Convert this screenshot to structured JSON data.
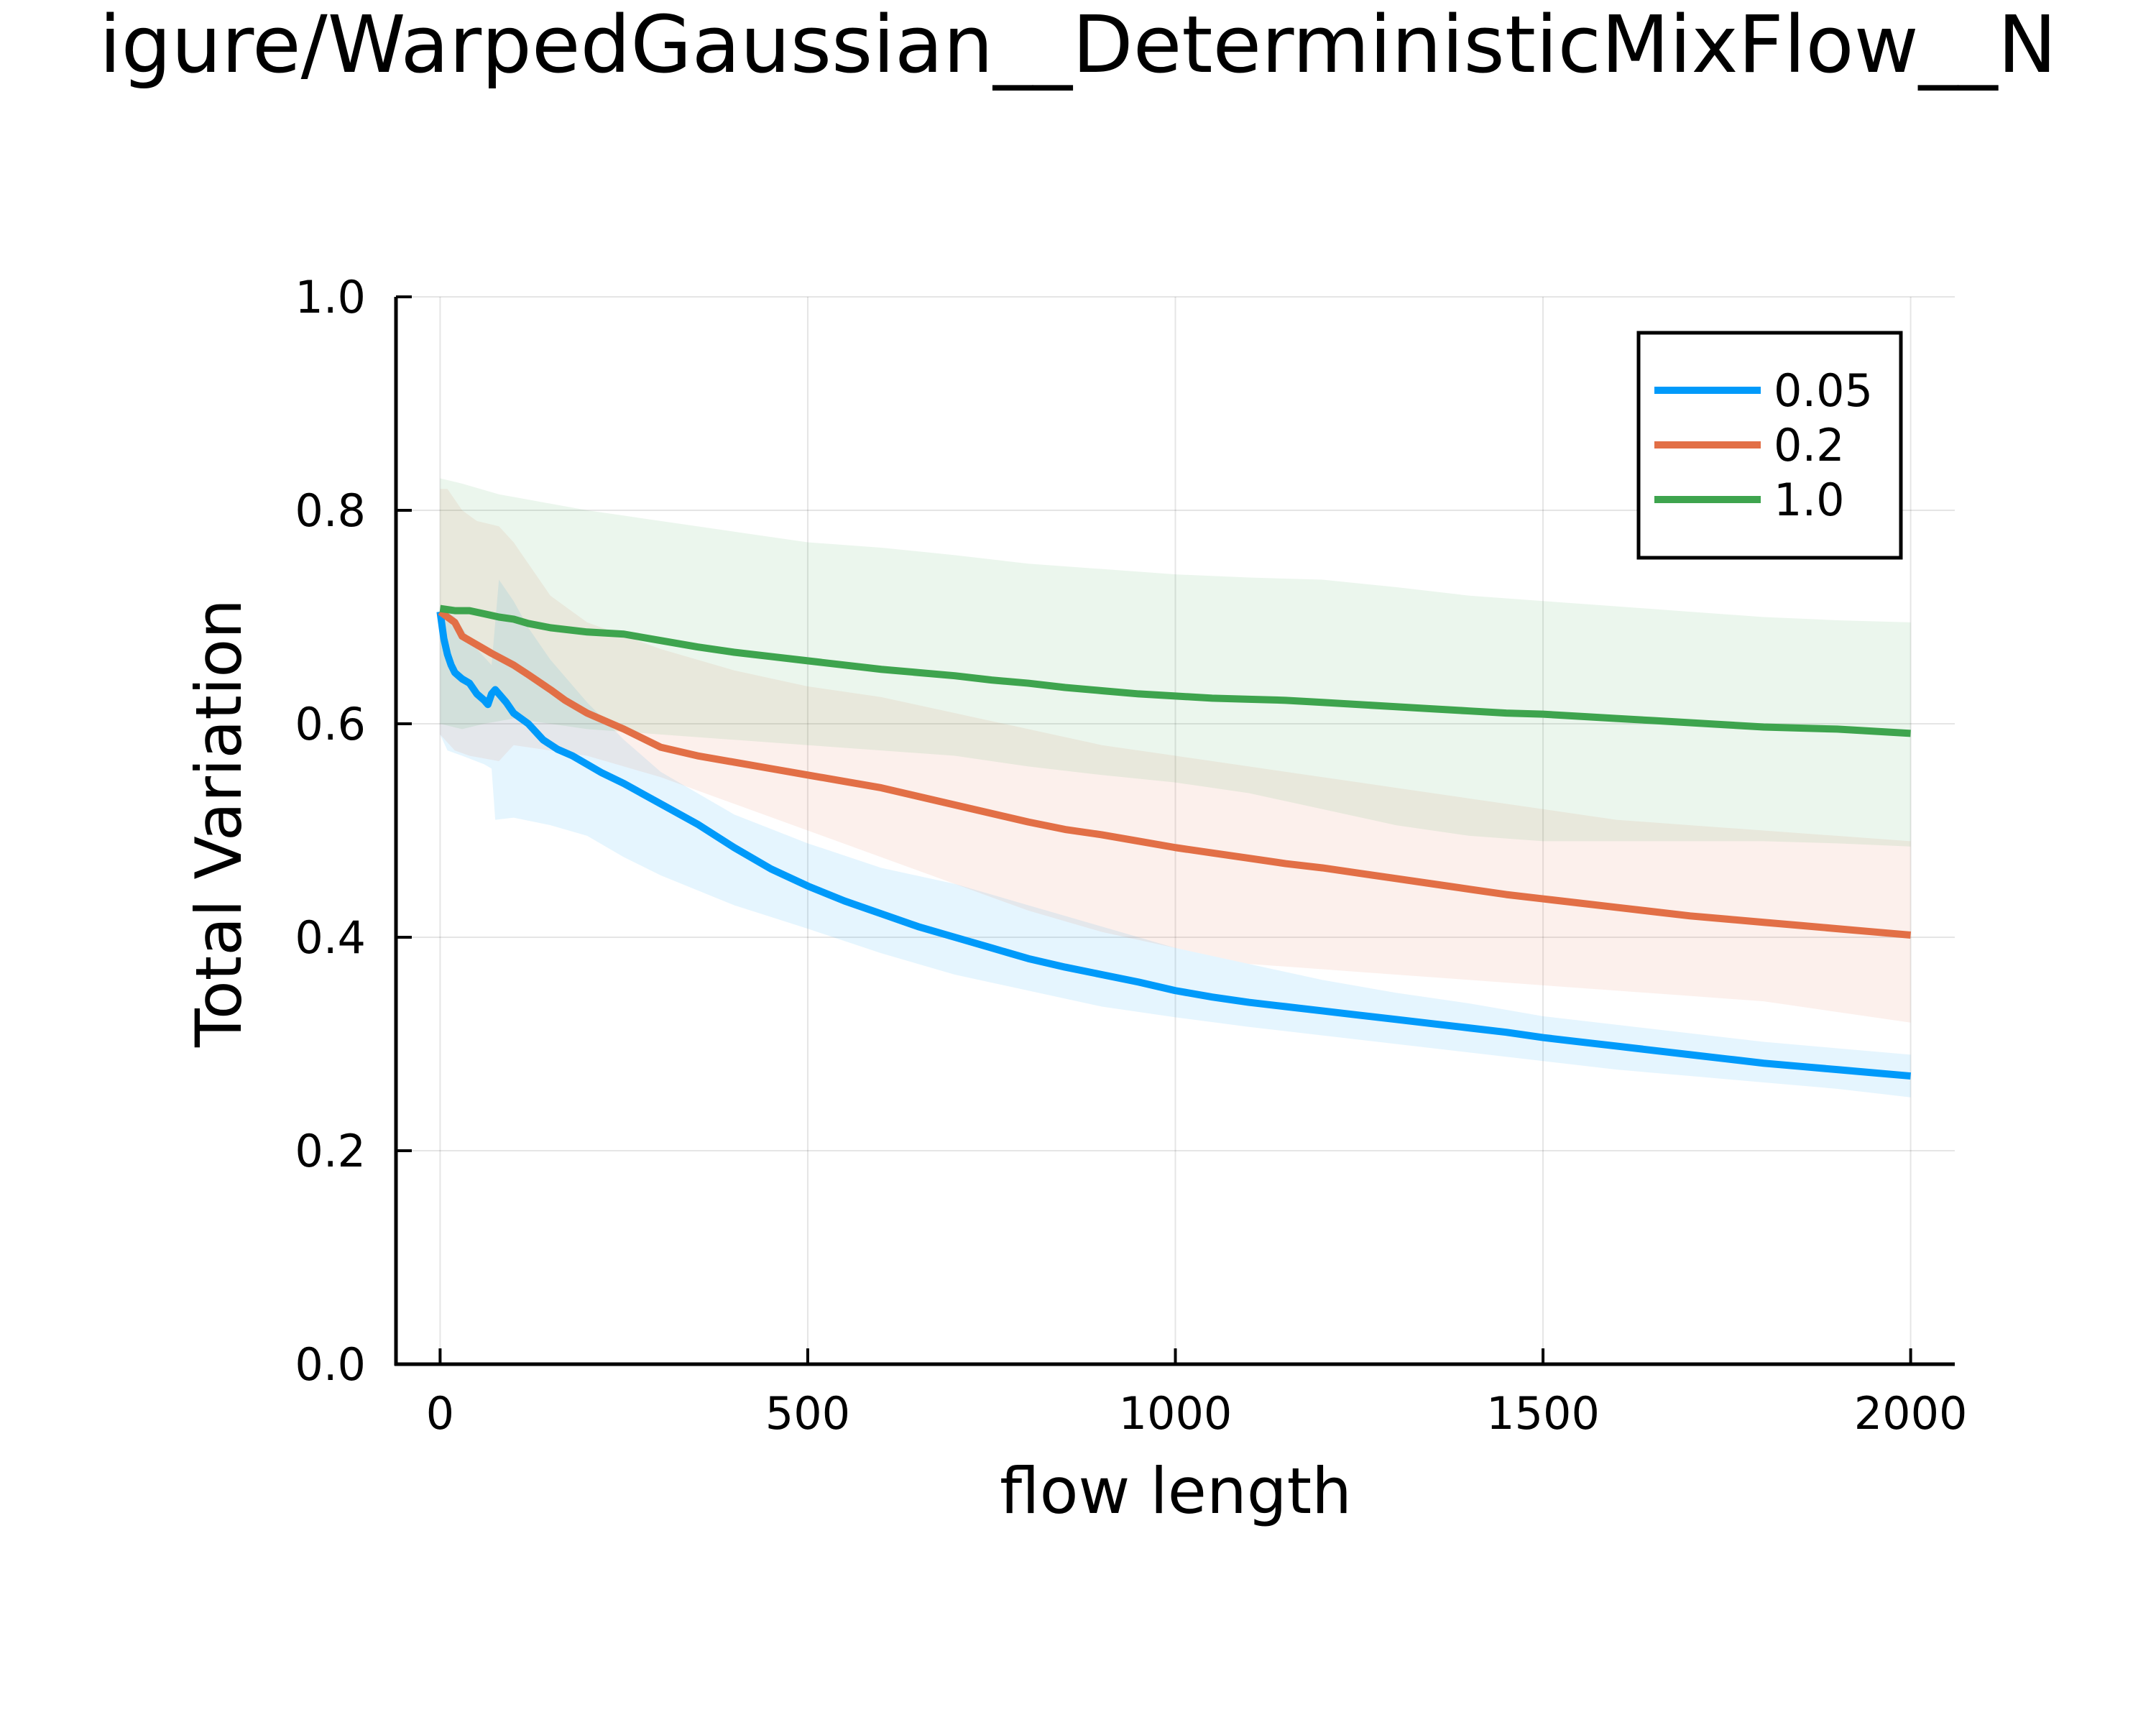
{
  "chart_data": {
    "type": "line",
    "title": "igure/WarpedGaussian__DeterministicMixFlow__N",
    "xlabel": "flow length",
    "ylabel": "Total Variation",
    "xlim": [
      -60,
      2060
    ],
    "ylim": [
      0,
      1.0
    ],
    "xticks": [
      0,
      500,
      1000,
      1500,
      2000
    ],
    "xtick_labels": [
      "0",
      "500",
      "1000",
      "1500",
      "2000"
    ],
    "yticks": [
      0,
      0.2,
      0.4,
      0.6,
      0.8,
      1.0
    ],
    "ytick_labels": [
      "0.0",
      "0.2",
      "0.4",
      "0.6",
      "0.8",
      "1.0"
    ],
    "grid": true,
    "legend_position": "top-right",
    "series": [
      {
        "name": "0.05",
        "color": "#009AFA",
        "points": [
          [
            0,
            0.705
          ],
          [
            5,
            0.68
          ],
          [
            10,
            0.665
          ],
          [
            15,
            0.655
          ],
          [
            20,
            0.648
          ],
          [
            30,
            0.642
          ],
          [
            40,
            0.638
          ],
          [
            50,
            0.628
          ],
          [
            60,
            0.622
          ],
          [
            65,
            0.618
          ],
          [
            70,
            0.628
          ],
          [
            75,
            0.632
          ],
          [
            80,
            0.628
          ],
          [
            90,
            0.62
          ],
          [
            100,
            0.61
          ],
          [
            120,
            0.6
          ],
          [
            140,
            0.585
          ],
          [
            160,
            0.576
          ],
          [
            180,
            0.57
          ],
          [
            200,
            0.562
          ],
          [
            220,
            0.554
          ],
          [
            250,
            0.544
          ],
          [
            300,
            0.525
          ],
          [
            350,
            0.506
          ],
          [
            400,
            0.484
          ],
          [
            450,
            0.464
          ],
          [
            500,
            0.448
          ],
          [
            550,
            0.434
          ],
          [
            600,
            0.422
          ],
          [
            650,
            0.41
          ],
          [
            700,
            0.4
          ],
          [
            750,
            0.39
          ],
          [
            800,
            0.38
          ],
          [
            850,
            0.372
          ],
          [
            900,
            0.365
          ],
          [
            950,
            0.358
          ],
          [
            1000,
            0.35
          ],
          [
            1050,
            0.344
          ],
          [
            1100,
            0.339
          ],
          [
            1150,
            0.335
          ],
          [
            1200,
            0.331
          ],
          [
            1250,
            0.327
          ],
          [
            1300,
            0.323
          ],
          [
            1350,
            0.319
          ],
          [
            1400,
            0.315
          ],
          [
            1450,
            0.311
          ],
          [
            1500,
            0.306
          ],
          [
            1550,
            0.302
          ],
          [
            1600,
            0.298
          ],
          [
            1650,
            0.294
          ],
          [
            1700,
            0.29
          ],
          [
            1750,
            0.286
          ],
          [
            1800,
            0.282
          ],
          [
            1850,
            0.279
          ],
          [
            1900,
            0.276
          ],
          [
            1950,
            0.273
          ],
          [
            2000,
            0.27
          ]
        ],
        "band_upper": [
          [
            0,
            0.71
          ],
          [
            20,
            0.7
          ],
          [
            50,
            0.67
          ],
          [
            70,
            0.655
          ],
          [
            80,
            0.735
          ],
          [
            100,
            0.715
          ],
          [
            120,
            0.69
          ],
          [
            150,
            0.66
          ],
          [
            200,
            0.62
          ],
          [
            250,
            0.585
          ],
          [
            300,
            0.555
          ],
          [
            400,
            0.515
          ],
          [
            500,
            0.488
          ],
          [
            600,
            0.465
          ],
          [
            700,
            0.45
          ],
          [
            800,
            0.43
          ],
          [
            900,
            0.41
          ],
          [
            1000,
            0.39
          ],
          [
            1100,
            0.375
          ],
          [
            1200,
            0.36
          ],
          [
            1300,
            0.348
          ],
          [
            1400,
            0.338
          ],
          [
            1500,
            0.326
          ],
          [
            1600,
            0.318
          ],
          [
            1700,
            0.31
          ],
          [
            1800,
            0.302
          ],
          [
            1900,
            0.296
          ],
          [
            2000,
            0.29
          ]
        ],
        "band_lower": [
          [
            0,
            0.59
          ],
          [
            10,
            0.575
          ],
          [
            30,
            0.57
          ],
          [
            60,
            0.562
          ],
          [
            70,
            0.558
          ],
          [
            75,
            0.51
          ],
          [
            100,
            0.512
          ],
          [
            150,
            0.505
          ],
          [
            200,
            0.495
          ],
          [
            250,
            0.475
          ],
          [
            300,
            0.458
          ],
          [
            400,
            0.43
          ],
          [
            500,
            0.408
          ],
          [
            600,
            0.385
          ],
          [
            700,
            0.365
          ],
          [
            800,
            0.35
          ],
          [
            900,
            0.335
          ],
          [
            1000,
            0.325
          ],
          [
            1100,
            0.316
          ],
          [
            1200,
            0.308
          ],
          [
            1300,
            0.3
          ],
          [
            1400,
            0.292
          ],
          [
            1500,
            0.284
          ],
          [
            1600,
            0.276
          ],
          [
            1700,
            0.27
          ],
          [
            1800,
            0.264
          ],
          [
            1900,
            0.258
          ],
          [
            2000,
            0.25
          ]
        ]
      },
      {
        "name": "0.2",
        "color": "#E26F46",
        "points": [
          [
            0,
            0.705
          ],
          [
            10,
            0.7
          ],
          [
            20,
            0.695
          ],
          [
            30,
            0.682
          ],
          [
            50,
            0.674
          ],
          [
            70,
            0.666
          ],
          [
            100,
            0.655
          ],
          [
            120,
            0.646
          ],
          [
            150,
            0.632
          ],
          [
            170,
            0.622
          ],
          [
            200,
            0.61
          ],
          [
            250,
            0.595
          ],
          [
            300,
            0.578
          ],
          [
            350,
            0.57
          ],
          [
            400,
            0.564
          ],
          [
            450,
            0.558
          ],
          [
            500,
            0.552
          ],
          [
            550,
            0.546
          ],
          [
            600,
            0.54
          ],
          [
            650,
            0.532
          ],
          [
            700,
            0.524
          ],
          [
            750,
            0.516
          ],
          [
            800,
            0.508
          ],
          [
            850,
            0.501
          ],
          [
            900,
            0.496
          ],
          [
            950,
            0.49
          ],
          [
            1000,
            0.484
          ],
          [
            1050,
            0.479
          ],
          [
            1100,
            0.474
          ],
          [
            1150,
            0.469
          ],
          [
            1200,
            0.465
          ],
          [
            1250,
            0.46
          ],
          [
            1300,
            0.455
          ],
          [
            1350,
            0.45
          ],
          [
            1400,
            0.445
          ],
          [
            1450,
            0.44
          ],
          [
            1500,
            0.436
          ],
          [
            1550,
            0.432
          ],
          [
            1600,
            0.428
          ],
          [
            1650,
            0.424
          ],
          [
            1700,
            0.42
          ],
          [
            1750,
            0.417
          ],
          [
            1800,
            0.414
          ],
          [
            1850,
            0.411
          ],
          [
            1900,
            0.408
          ],
          [
            1950,
            0.405
          ],
          [
            2000,
            0.402
          ]
        ],
        "band_upper": [
          [
            0,
            0.82
          ],
          [
            10,
            0.82
          ],
          [
            30,
            0.8
          ],
          [
            50,
            0.79
          ],
          [
            80,
            0.785
          ],
          [
            100,
            0.77
          ],
          [
            120,
            0.75
          ],
          [
            150,
            0.72
          ],
          [
            180,
            0.705
          ],
          [
            200,
            0.695
          ],
          [
            300,
            0.67
          ],
          [
            400,
            0.65
          ],
          [
            500,
            0.635
          ],
          [
            600,
            0.625
          ],
          [
            700,
            0.61
          ],
          [
            800,
            0.595
          ],
          [
            900,
            0.58
          ],
          [
            1000,
            0.57
          ],
          [
            1100,
            0.56
          ],
          [
            1200,
            0.55
          ],
          [
            1300,
            0.54
          ],
          [
            1400,
            0.53
          ],
          [
            1500,
            0.52
          ],
          [
            1600,
            0.51
          ],
          [
            1700,
            0.505
          ],
          [
            1800,
            0.5
          ],
          [
            1900,
            0.495
          ],
          [
            2000,
            0.49
          ]
        ],
        "band_lower": [
          [
            0,
            0.59
          ],
          [
            20,
            0.575
          ],
          [
            40,
            0.57
          ],
          [
            80,
            0.565
          ],
          [
            100,
            0.58
          ],
          [
            150,
            0.575
          ],
          [
            200,
            0.57
          ],
          [
            300,
            0.55
          ],
          [
            400,
            0.525
          ],
          [
            500,
            0.5
          ],
          [
            600,
            0.475
          ],
          [
            700,
            0.45
          ],
          [
            800,
            0.425
          ],
          [
            900,
            0.405
          ],
          [
            1000,
            0.39
          ],
          [
            1100,
            0.375
          ],
          [
            1200,
            0.37
          ],
          [
            1300,
            0.365
          ],
          [
            1400,
            0.36
          ],
          [
            1500,
            0.355
          ],
          [
            1600,
            0.35
          ],
          [
            1700,
            0.345
          ],
          [
            1800,
            0.34
          ],
          [
            1900,
            0.33
          ],
          [
            2000,
            0.32
          ]
        ]
      },
      {
        "name": "1.0",
        "color": "#3EA44E",
        "points": [
          [
            0,
            0.708
          ],
          [
            20,
            0.706
          ],
          [
            40,
            0.706
          ],
          [
            60,
            0.703
          ],
          [
            80,
            0.7
          ],
          [
            100,
            0.698
          ],
          [
            120,
            0.694
          ],
          [
            150,
            0.69
          ],
          [
            200,
            0.686
          ],
          [
            250,
            0.684
          ],
          [
            300,
            0.678
          ],
          [
            350,
            0.672
          ],
          [
            400,
            0.667
          ],
          [
            450,
            0.663
          ],
          [
            500,
            0.659
          ],
          [
            550,
            0.655
          ],
          [
            600,
            0.651
          ],
          [
            650,
            0.648
          ],
          [
            700,
            0.645
          ],
          [
            750,
            0.641
          ],
          [
            800,
            0.638
          ],
          [
            850,
            0.634
          ],
          [
            900,
            0.631
          ],
          [
            950,
            0.628
          ],
          [
            1000,
            0.626
          ],
          [
            1050,
            0.624
          ],
          [
            1100,
            0.623
          ],
          [
            1150,
            0.622
          ],
          [
            1200,
            0.62
          ],
          [
            1250,
            0.618
          ],
          [
            1300,
            0.616
          ],
          [
            1350,
            0.614
          ],
          [
            1400,
            0.612
          ],
          [
            1450,
            0.61
          ],
          [
            1500,
            0.609
          ],
          [
            1550,
            0.607
          ],
          [
            1600,
            0.605
          ],
          [
            1650,
            0.603
          ],
          [
            1700,
            0.601
          ],
          [
            1750,
            0.599
          ],
          [
            1800,
            0.597
          ],
          [
            1850,
            0.596
          ],
          [
            1900,
            0.595
          ],
          [
            1950,
            0.593
          ],
          [
            2000,
            0.591
          ]
        ],
        "band_upper": [
          [
            0,
            0.83
          ],
          [
            30,
            0.825
          ],
          [
            80,
            0.815
          ],
          [
            120,
            0.81
          ],
          [
            200,
            0.8
          ],
          [
            250,
            0.795
          ],
          [
            300,
            0.79
          ],
          [
            400,
            0.78
          ],
          [
            500,
            0.77
          ],
          [
            600,
            0.765
          ],
          [
            700,
            0.758
          ],
          [
            800,
            0.75
          ],
          [
            900,
            0.745
          ],
          [
            1000,
            0.74
          ],
          [
            1100,
            0.737
          ],
          [
            1200,
            0.735
          ],
          [
            1300,
            0.728
          ],
          [
            1400,
            0.72
          ],
          [
            1500,
            0.715
          ],
          [
            1600,
            0.71
          ],
          [
            1700,
            0.705
          ],
          [
            1800,
            0.7
          ],
          [
            1900,
            0.697
          ],
          [
            2000,
            0.695
          ]
        ],
        "band_lower": [
          [
            0,
            0.6
          ],
          [
            30,
            0.595
          ],
          [
            60,
            0.6
          ],
          [
            100,
            0.605
          ],
          [
            150,
            0.6
          ],
          [
            200,
            0.595
          ],
          [
            300,
            0.59
          ],
          [
            400,
            0.585
          ],
          [
            500,
            0.58
          ],
          [
            600,
            0.575
          ],
          [
            700,
            0.57
          ],
          [
            800,
            0.56
          ],
          [
            900,
            0.552
          ],
          [
            1000,
            0.545
          ],
          [
            1100,
            0.535
          ],
          [
            1200,
            0.52
          ],
          [
            1300,
            0.505
          ],
          [
            1400,
            0.495
          ],
          [
            1500,
            0.49
          ],
          [
            1600,
            0.49
          ],
          [
            1700,
            0.49
          ],
          [
            1800,
            0.49
          ],
          [
            1900,
            0.488
          ],
          [
            2000,
            0.485
          ]
        ]
      }
    ]
  }
}
